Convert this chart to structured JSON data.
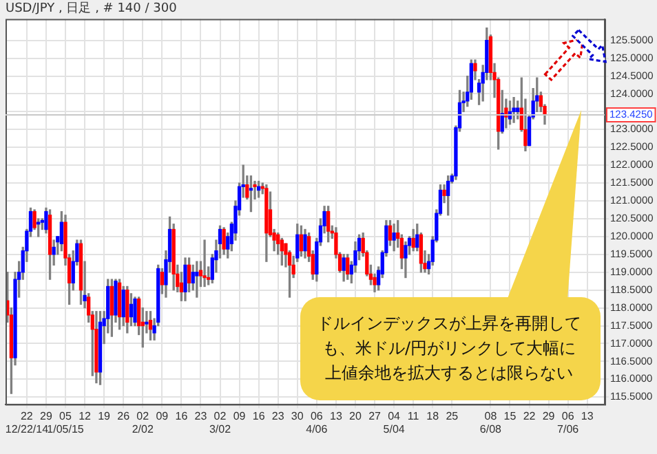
{
  "chart_data": {
    "type": "candlestick",
    "title": "USD/JPY , 日足 , # 140 / 300",
    "annotations": [
      "ドルインデックスが上昇を再開しても、米ドル/円がリンクして大幅に上値余地を拡大するとは限らない"
    ],
    "categories": [
      null,
      null,
      null,
      null,
      null,
      "22\n12/22/14",
      null,
      null,
      null,
      null,
      "29",
      null,
      null,
      null,
      null,
      "05\n1/05/15",
      null,
      null,
      null,
      null,
      "12",
      null,
      null,
      null,
      null,
      "19",
      null,
      null,
      null,
      null,
      "26",
      null,
      null,
      null,
      null,
      "02\n2/02",
      null,
      null,
      null,
      null,
      "09",
      null,
      null,
      null,
      null,
      "16",
      null,
      null,
      null,
      null,
      "23",
      null,
      null,
      null,
      null,
      "02\n3/02",
      null,
      null,
      null,
      null,
      "09",
      null,
      null,
      null,
      null,
      "16",
      null,
      null,
      null,
      null,
      "23",
      null,
      null,
      null,
      null,
      "30",
      null,
      null,
      null,
      null,
      "06\n4/06",
      null,
      null,
      null,
      null,
      "13",
      null,
      null,
      null,
      null,
      "20",
      null,
      null,
      null,
      null,
      "27",
      null,
      null,
      null,
      null,
      "04\n5/04",
      null,
      null,
      null,
      null,
      "11",
      null,
      null,
      null,
      null,
      "18",
      null,
      null,
      null,
      null,
      "25",
      null,
      null,
      null,
      null,
      null,
      null,
      null,
      null,
      null,
      "08\n6/08",
      null,
      null,
      null,
      null,
      "15",
      null,
      null,
      null,
      null,
      "22",
      null,
      null,
      null,
      null,
      "29",
      null,
      null,
      null,
      null,
      "06\n7/06",
      null,
      null,
      null,
      null,
      "13",
      null,
      null,
      null,
      null
    ],
    "ohlc": [
      [
        118.2,
        119.0,
        117.6,
        117.8
      ],
      [
        117.8,
        118.0,
        115.6,
        116.6
      ],
      [
        116.6,
        119.0,
        116.4,
        118.8
      ],
      [
        118.8,
        119.3,
        118.3,
        119.0
      ],
      [
        119.0,
        119.7,
        118.8,
        119.6
      ],
      [
        119.6,
        120.2,
        119.3,
        120.15
      ],
      [
        120.15,
        120.8,
        120.0,
        120.7
      ],
      [
        120.7,
        120.75,
        120.2,
        120.25
      ],
      [
        120.35,
        120.5,
        120.0,
        120.4
      ],
      [
        120.4,
        120.5,
        120.2,
        120.45
      ],
      [
        120.2,
        120.8,
        120.1,
        120.7
      ],
      [
        120.6,
        120.75,
        118.8,
        119.5
      ],
      [
        119.5,
        119.9,
        119.2,
        119.7
      ],
      [
        119.85,
        120.0,
        119.5,
        120.0
      ],
      [
        119.8,
        120.7,
        119.6,
        120.4
      ],
      [
        120.4,
        120.6,
        119.2,
        119.4
      ],
      [
        119.4,
        119.5,
        118.1,
        118.7
      ],
      [
        118.7,
        119.6,
        118.5,
        119.3
      ],
      [
        119.3,
        119.9,
        119.2,
        119.8
      ],
      [
        119.8,
        119.9,
        118.1,
        118.5
      ],
      [
        118.2,
        119.3,
        118.0,
        118.35
      ],
      [
        118.3,
        118.4,
        117.6,
        117.8
      ],
      [
        117.8,
        117.9,
        116.1,
        117.4
      ],
      [
        117.4,
        117.9,
        115.9,
        116.2
      ],
      [
        116.2,
        117.9,
        115.85,
        117.6
      ],
      [
        117.5,
        117.9,
        117.0,
        117.7
      ],
      [
        117.7,
        118.8,
        117.3,
        118.6
      ],
      [
        118.6,
        118.8,
        117.2,
        117.8
      ],
      [
        117.8,
        118.8,
        117.6,
        118.75
      ],
      [
        118.7,
        118.8,
        117.4,
        117.75
      ],
      [
        117.75,
        118.6,
        117.5,
        118.5
      ],
      [
        118.5,
        118.6,
        117.3,
        117.6
      ],
      [
        117.75,
        118.4,
        117.5,
        118.1
      ],
      [
        117.6,
        118.3,
        117.5,
        118.25
      ],
      [
        118.25,
        118.3,
        117.25,
        117.5
      ],
      [
        117.6,
        118.0,
        116.9,
        117.5
      ],
      [
        117.55,
        117.9,
        117.3,
        117.6
      ],
      [
        117.65,
        117.9,
        117.1,
        117.4
      ],
      [
        117.3,
        117.7,
        117.1,
        117.5
      ],
      [
        117.6,
        119.2,
        117.5,
        119.1
      ],
      [
        119.0,
        119.1,
        118.4,
        118.65
      ],
      [
        118.65,
        119.6,
        118.3,
        119.35
      ],
      [
        119.3,
        120.55,
        119.0,
        120.2
      ],
      [
        120.2,
        120.35,
        118.5,
        118.95
      ],
      [
        118.95,
        119.2,
        118.45,
        118.6
      ],
      [
        118.7,
        119.0,
        118.2,
        118.45
      ],
      [
        118.45,
        119.4,
        118.2,
        119.2
      ],
      [
        119.2,
        119.4,
        118.45,
        118.7
      ],
      [
        118.7,
        119.2,
        118.5,
        119.0
      ],
      [
        118.9,
        119.3,
        118.3,
        119.0
      ],
      [
        119.05,
        119.3,
        118.6,
        118.9
      ],
      [
        118.9,
        119.9,
        118.6,
        118.85
      ],
      [
        118.85,
        119.15,
        118.65,
        118.8
      ],
      [
        118.8,
        119.5,
        118.7,
        119.4
      ],
      [
        119.35,
        119.9,
        119.0,
        119.6
      ],
      [
        119.8,
        120.3,
        119.4,
        120.2
      ],
      [
        120.2,
        120.25,
        119.5,
        119.65
      ],
      [
        119.65,
        120.1,
        119.4,
        120.0
      ],
      [
        119.8,
        120.4,
        119.6,
        120.35
      ],
      [
        120.1,
        121.0,
        119.9,
        120.85
      ],
      [
        120.75,
        121.5,
        120.6,
        121.4
      ],
      [
        121.4,
        122.0,
        121.1,
        121.45
      ],
      [
        121.45,
        121.7,
        121.05,
        121.1
      ],
      [
        121.3,
        121.7,
        120.7,
        121.35
      ],
      [
        121.45,
        121.55,
        121.05,
        121.4
      ],
      [
        121.3,
        121.55,
        121.1,
        121.4
      ],
      [
        121.4,
        121.5,
        121.2,
        121.35
      ],
      [
        121.35,
        121.45,
        119.3,
        120.1
      ],
      [
        120.75,
        121.25,
        120.0,
        120.05
      ],
      [
        120.1,
        120.2,
        119.6,
        119.9
      ],
      [
        120.05,
        120.1,
        119.5,
        119.8
      ],
      [
        119.9,
        119.95,
        119.2,
        119.6
      ],
      [
        119.8,
        119.8,
        119.15,
        119.5
      ],
      [
        119.55,
        119.6,
        118.3,
        119.2
      ],
      [
        119.2,
        119.45,
        118.85,
        118.95
      ],
      [
        119.4,
        120.35,
        119.3,
        120.05
      ],
      [
        120.05,
        120.3,
        119.45,
        119.6
      ],
      [
        119.6,
        120.2,
        119.4,
        120.05
      ],
      [
        120.0,
        120.1,
        119.3,
        119.45
      ],
      [
        119.5,
        119.6,
        118.8,
        118.95
      ],
      [
        118.95,
        119.95,
        118.75,
        119.85
      ],
      [
        119.85,
        120.5,
        119.75,
        120.3
      ],
      [
        120.3,
        120.85,
        120.1,
        120.7
      ],
      [
        120.7,
        120.85,
        119.85,
        120.15
      ],
      [
        120.15,
        120.3,
        119.95,
        120.1
      ],
      [
        120.1,
        120.25,
        119.4,
        119.5
      ],
      [
        119.5,
        119.55,
        119.0,
        119.05
      ],
      [
        119.05,
        119.5,
        118.75,
        119.4
      ],
      [
        119.4,
        119.5,
        118.8,
        118.95
      ],
      [
        118.95,
        119.3,
        118.7,
        119.2
      ],
      [
        119.2,
        119.85,
        119.0,
        119.6
      ],
      [
        119.6,
        120.05,
        119.35,
        119.95
      ],
      [
        119.95,
        120.1,
        119.45,
        119.55
      ],
      [
        119.55,
        119.6,
        118.9,
        118.95
      ],
      [
        118.95,
        119.2,
        118.65,
        118.8
      ],
      [
        118.85,
        118.95,
        118.45,
        118.65
      ],
      [
        118.65,
        119.15,
        118.5,
        119.05
      ],
      [
        118.95,
        119.6,
        118.85,
        119.55
      ],
      [
        119.55,
        120.45,
        119.45,
        120.3
      ],
      [
        120.3,
        120.45,
        119.75,
        119.9
      ],
      [
        119.9,
        120.35,
        119.6,
        120.1
      ],
      [
        120.1,
        120.45,
        119.7,
        119.95
      ],
      [
        119.95,
        120.05,
        119.1,
        119.4
      ],
      [
        119.4,
        119.85,
        118.85,
        119.75
      ],
      [
        119.75,
        120.0,
        119.5,
        119.95
      ],
      [
        119.95,
        120.2,
        119.6,
        119.7
      ],
      [
        119.7,
        120.35,
        119.6,
        120.05
      ],
      [
        120.05,
        120.1,
        119.0,
        119.25
      ],
      [
        119.25,
        119.6,
        119.0,
        119.1
      ],
      [
        119.1,
        119.5,
        118.95,
        119.3
      ],
      [
        119.3,
        120.0,
        119.2,
        119.9
      ],
      [
        119.9,
        120.75,
        119.85,
        120.65
      ],
      [
        120.65,
        121.45,
        120.6,
        121.3
      ],
      [
        121.3,
        121.45,
        120.95,
        121.15
      ],
      [
        121.15,
        121.7,
        120.6,
        121.55
      ],
      [
        121.55,
        121.75,
        121.5,
        121.7
      ],
      [
        121.7,
        123.1,
        121.6,
        123.05
      ],
      [
        123.05,
        124.1,
        122.95,
        123.75
      ],
      [
        123.75,
        124.05,
        123.5,
        123.8
      ],
      [
        123.8,
        124.5,
        123.65,
        124.05
      ],
      [
        124.05,
        124.95,
        123.85,
        124.85
      ],
      [
        124.85,
        124.95,
        124.4,
        124.65
      ],
      [
        124.05,
        124.4,
        123.7,
        124.3
      ],
      [
        124.3,
        124.8,
        123.8,
        124.6
      ],
      [
        124.6,
        125.85,
        124.4,
        125.5
      ],
      [
        125.6,
        125.65,
        124.4,
        124.6
      ],
      [
        124.6,
        124.85,
        123.9,
        124.4
      ],
      [
        124.4,
        124.45,
        122.45,
        122.95
      ],
      [
        122.95,
        124.1,
        122.9,
        123.45
      ],
      [
        123.6,
        123.85,
        123.05,
        123.35
      ],
      [
        123.3,
        123.8,
        123.15,
        123.5
      ],
      [
        123.5,
        123.9,
        123.2,
        123.6
      ],
      [
        123.5,
        123.8,
        123.3,
        123.6
      ],
      [
        123.6,
        124.45,
        122.95,
        123.0
      ],
      [
        123.0,
        123.85,
        122.4,
        122.55
      ],
      [
        122.55,
        123.4,
        122.55,
        123.35
      ],
      [
        123.35,
        124.15,
        123.3,
        123.8
      ],
      [
        123.8,
        124.45,
        123.5,
        123.95
      ],
      [
        123.95,
        124.05,
        123.5,
        123.65
      ],
      [
        123.65,
        123.7,
        123.15,
        123.425
      ],
      null,
      null,
      null,
      null,
      null,
      null,
      null,
      null,
      null,
      null,
      null,
      null,
      null,
      null,
      null
    ],
    "colors": [
      "#ff0000",
      "#ff0000",
      "#0000ff",
      "#0000ff",
      "#0000ff",
      "#0000ff",
      "#0000ff",
      "#ff0000",
      "#0000ff",
      "#0000ff",
      "#0000ff",
      "#ff0000",
      "#0000ff",
      "#0000ff",
      "#0000ff",
      "#ff0000",
      "#ff0000",
      "#0000ff",
      "#0000ff",
      "#ff0000",
      "#0000ff",
      "#ff0000",
      "#ff0000",
      "#ff0000",
      "#0000ff",
      "#0000ff",
      "#0000ff",
      "#ff0000",
      "#0000ff",
      "#ff0000",
      "#0000ff",
      "#ff0000",
      "#0000ff",
      "#0000ff",
      "#ff0000",
      "#ff0000",
      "#0000ff",
      "#ff0000",
      "#0000ff",
      "#0000ff",
      "#ff0000",
      "#0000ff",
      "#0000ff",
      "#ff0000",
      "#ff0000",
      "#ff0000",
      "#0000ff",
      "#ff0000",
      "#0000ff",
      "#0000ff",
      "#ff0000",
      "#ff0000",
      "#ff0000",
      "#0000ff",
      "#0000ff",
      "#0000ff",
      "#ff0000",
      "#0000ff",
      "#0000ff",
      "#0000ff",
      "#0000ff",
      "#0000ff",
      "#ff0000",
      "#0000ff",
      "#ff0000",
      "#0000ff",
      "#ff0000",
      "#ff0000",
      "#ff0000",
      "#ff0000",
      "#ff0000",
      "#ff0000",
      "#ff0000",
      "#ff0000",
      "#ff0000",
      "#0000ff",
      "#ff0000",
      "#0000ff",
      "#ff0000",
      "#ff0000",
      "#0000ff",
      "#0000ff",
      "#0000ff",
      "#ff0000",
      "#ff0000",
      "#ff0000",
      "#ff0000",
      "#0000ff",
      "#ff0000",
      "#0000ff",
      "#0000ff",
      "#0000ff",
      "#ff0000",
      "#ff0000",
      "#ff0000",
      "#ff0000",
      "#0000ff",
      "#0000ff",
      "#0000ff",
      "#ff0000",
      "#0000ff",
      "#ff0000",
      "#ff0000",
      "#0000ff",
      "#0000ff",
      "#ff0000",
      "#0000ff",
      "#ff0000",
      "#ff0000",
      "#0000ff",
      "#0000ff",
      "#0000ff",
      "#0000ff",
      "#ff0000",
      "#0000ff",
      "#0000ff",
      "#0000ff",
      "#0000ff",
      "#0000ff",
      "#0000ff",
      "#0000ff",
      "#ff0000",
      "#0000ff",
      "#0000ff",
      "#0000ff",
      "#ff0000",
      "#ff0000",
      "#ff0000",
      "#0000ff",
      "#ff0000",
      "#0000ff",
      "#0000ff",
      "#0000ff",
      "#ff0000",
      "#ff0000",
      "#0000ff",
      "#0000ff",
      "#0000ff",
      "#ff0000",
      "#ff0000",
      null,
      null,
      null,
      null,
      null,
      null,
      null,
      null,
      null,
      null,
      null,
      null,
      null,
      null,
      null
    ],
    "ylim": [
      115.3,
      126.1
    ],
    "yticks": [
      {
        "value": 115.5,
        "label": "115.5000"
      },
      {
        "value": 116,
        "label": "116.0000"
      },
      {
        "value": 116.5,
        "label": "116.5000"
      },
      {
        "value": 117,
        "label": "117.0000"
      },
      {
        "value": 117.5,
        "label": "117.5000"
      },
      {
        "value": 118,
        "label": "118.0000"
      },
      {
        "value": 118.5,
        "label": "118.5000"
      },
      {
        "value": 119,
        "label": "119.0000"
      },
      {
        "value": 119.5,
        "label": "119.5000"
      },
      {
        "value": 120,
        "label": "120.0000"
      },
      {
        "value": 120.5,
        "label": "120.5000"
      },
      {
        "value": 121,
        "label": "121.0000"
      },
      {
        "value": 121.5,
        "label": "121.5000"
      },
      {
        "value": 122,
        "label": "122.0000"
      },
      {
        "value": 122.5,
        "label": "122.5000"
      },
      {
        "value": 123,
        "label": "123.0000"
      },
      {
        "value": 123.5,
        "label": null
      },
      {
        "value": 124,
        "label": "124.0000"
      },
      {
        "value": 124.5,
        "label": "124.5000"
      },
      {
        "value": 125,
        "label": "125.0000"
      },
      {
        "value": 125.5,
        "label": "125.5000"
      }
    ],
    "ref_lines": [
      {
        "axis": "y",
        "value": 123.425,
        "label": "123.4250"
      }
    ],
    "grid": true,
    "legend": false
  }
}
